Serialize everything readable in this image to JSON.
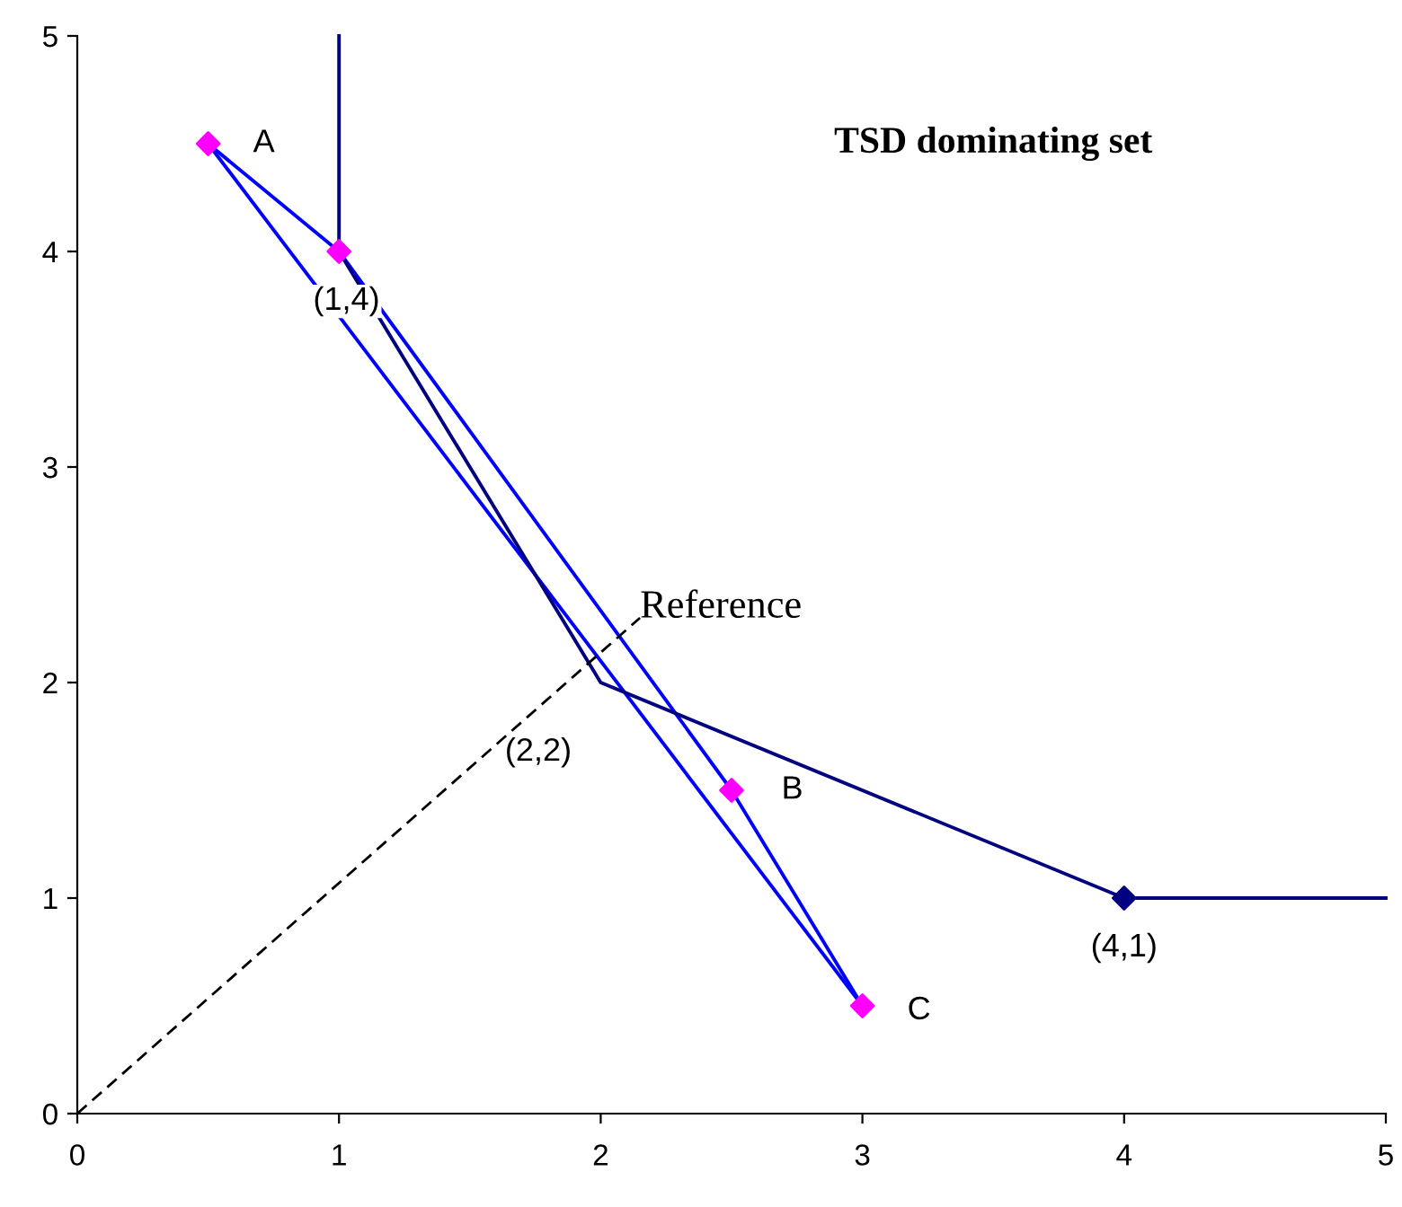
{
  "chart_data": {
    "type": "line",
    "title": "TSD dominating set",
    "xlim": [
      0,
      5
    ],
    "ylim": [
      0,
      5
    ],
    "xticks": [
      0,
      1,
      2,
      3,
      4,
      5
    ],
    "yticks": [
      0,
      1,
      2,
      3,
      4,
      5
    ],
    "grid": false,
    "legend": false,
    "series": [
      {
        "color": "#0000ff",
        "x": [
          0.5,
          1,
          2.5,
          3
        ],
        "values": [
          4.5,
          4,
          1.5,
          0.5
        ],
        "marker": "none",
        "line_style": "solid"
      },
      {
        "color": "#0000ff",
        "x": [
          0.5,
          3
        ],
        "values": [
          4.5,
          0.5
        ],
        "marker": "none",
        "line_style": "solid"
      },
      {
        "color": "#000080",
        "x": [
          1,
          1,
          2,
          4,
          5
        ],
        "values": [
          5,
          4,
          2,
          1,
          1
        ],
        "marker": "none",
        "line_style": "solid"
      },
      {
        "color": "#000000",
        "x": [
          0,
          2.15
        ],
        "values": [
          0,
          2.3
        ],
        "marker": "none",
        "line_style": "dashed"
      },
      {
        "type": "scatter",
        "color": "#ff00ff",
        "x": [
          0.5,
          1,
          2.5,
          3
        ],
        "values": [
          4.5,
          4,
          1.5,
          0.5
        ],
        "marker": "diamond"
      },
      {
        "type": "scatter",
        "color": "#000080",
        "x": [
          4
        ],
        "values": [
          1
        ],
        "marker": "diamond"
      }
    ],
    "annotations": [
      {
        "text": "A",
        "x": 0.5,
        "y": 4.5
      },
      {
        "text": "(1,4)",
        "x": 1,
        "y": 4
      },
      {
        "text": "B",
        "x": 2.5,
        "y": 1.5
      },
      {
        "text": "C",
        "x": 3,
        "y": 0.5
      },
      {
        "text": "(2,2)",
        "x": 2,
        "y": 2
      },
      {
        "text": "(4,1)",
        "x": 4,
        "y": 1
      },
      {
        "text": "Reference",
        "x": 2.15,
        "y": 2.3
      }
    ]
  }
}
